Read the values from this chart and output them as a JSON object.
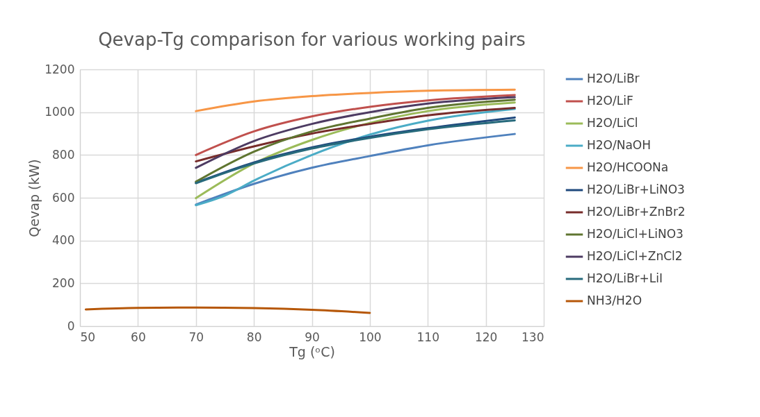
{
  "chart_data": {
    "type": "line",
    "title": "Qevap-Tg comparison for various working pairs",
    "xlabel": "Tg (ᵒC)",
    "ylabel": "Qevap (kW)",
    "xlim": [
      50,
      130
    ],
    "xticks": [
      50,
      60,
      70,
      80,
      90,
      100,
      110,
      120,
      130
    ],
    "ylim": [
      0,
      1200
    ],
    "yticks": [
      0,
      200,
      400,
      600,
      800,
      1000,
      1200
    ],
    "grid": true,
    "legend": "right",
    "marker": "none",
    "line_style": "solid",
    "series": [
      {
        "name": "H2O/LiBr",
        "color": "#4f81bd",
        "x": [
          70,
          80,
          90,
          100,
          110,
          125
        ],
        "values": [
          568,
          665,
          740,
          795,
          845,
          898
        ]
      },
      {
        "name": "H2O/LiF",
        "color": "#c0504d",
        "x": [
          70,
          80,
          90,
          100,
          110,
          125
        ],
        "values": [
          800,
          910,
          980,
          1025,
          1055,
          1080
        ]
      },
      {
        "name": "H2O/LiCl",
        "color": "#9bbb59",
        "x": [
          70,
          80,
          90,
          100,
          110,
          125
        ],
        "values": [
          598,
          760,
          870,
          950,
          1005,
          1045
        ]
      },
      {
        "name": "H2O/NaOH",
        "color": "#4bacc6",
        "x": [
          70,
          75,
          80,
          90,
          100,
          110,
          125
        ],
        "values": [
          565,
          610,
          680,
          800,
          895,
          960,
          1015
        ]
      },
      {
        "name": "H2O/HCOONa",
        "color": "#f79646",
        "x": [
          70,
          80,
          90,
          100,
          110,
          125
        ],
        "values": [
          1005,
          1050,
          1075,
          1090,
          1100,
          1105
        ]
      },
      {
        "name": "H2O/LiBr+LiNO3",
        "color": "#1f497d",
        "x": [
          70,
          80,
          90,
          100,
          110,
          125
        ],
        "values": [
          670,
          765,
          835,
          885,
          925,
          975
        ]
      },
      {
        "name": "H2O/LiBr+ZnBr2",
        "color": "#772c2a",
        "x": [
          70,
          80,
          90,
          100,
          110,
          125
        ],
        "values": [
          770,
          840,
          900,
          945,
          985,
          1020
        ]
      },
      {
        "name": "H2O/LiCl+LiNO3",
        "color": "#5f7530",
        "x": [
          70,
          80,
          90,
          100,
          110,
          125
        ],
        "values": [
          675,
          815,
          910,
          970,
          1020,
          1058
        ]
      },
      {
        "name": "H2O/LiCl+ZnCl2",
        "color": "#4d3b62",
        "x": [
          70,
          80,
          90,
          100,
          110,
          125
        ],
        "values": [
          740,
          865,
          945,
          1000,
          1040,
          1070
        ]
      },
      {
        "name": "H2O/LiBr+LiI",
        "color": "#276a7c",
        "x": [
          70,
          80,
          90,
          100,
          110,
          125
        ],
        "values": [
          668,
          760,
          830,
          880,
          920,
          962
        ]
      },
      {
        "name": "NH3/H2O",
        "color": "#b65708",
        "x": [
          51,
          60,
          70,
          80,
          90,
          100
        ],
        "values": [
          78,
          85,
          87,
          84,
          76,
          62
        ]
      }
    ]
  }
}
